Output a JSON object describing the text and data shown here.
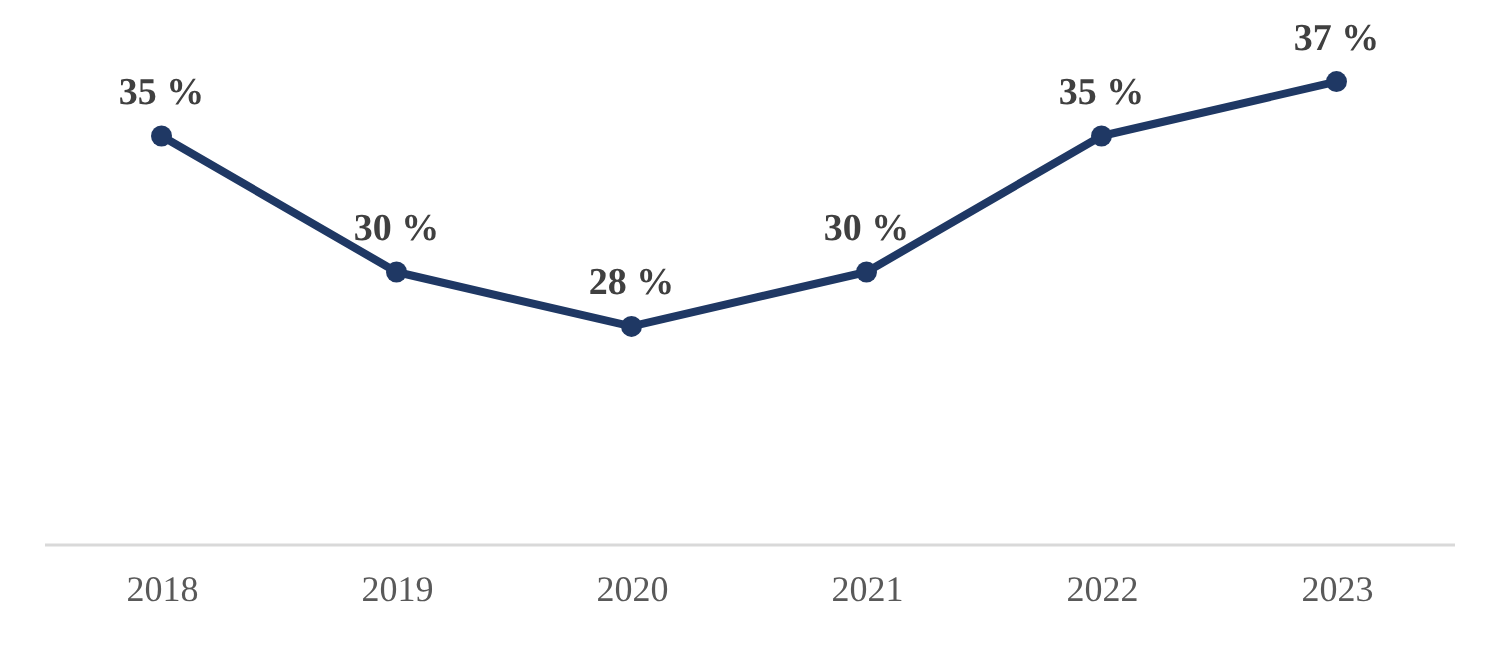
{
  "chart_data": {
    "type": "line",
    "categories": [
      "2018",
      "2019",
      "2020",
      "2021",
      "2022",
      "2023"
    ],
    "series": [
      {
        "color": "#1f3864",
        "values": [
          35,
          30,
          28,
          30,
          35,
          37
        ],
        "value_labels": [
          "35 %",
          "30 %",
          "28 %",
          "30 %",
          "35 %",
          "37 %"
        ]
      }
    ],
    "ylim": [
      20,
      40
    ],
    "tick_labels": "x",
    "grid": false,
    "marker": "circle",
    "line_style": "solid"
  }
}
